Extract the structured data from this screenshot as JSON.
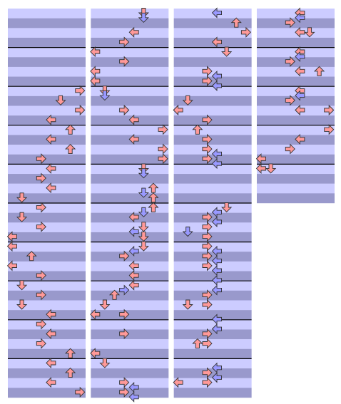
{
  "columns": [
    {
      "measures": 10,
      "notes": [
        [
          16,
          7,
          "#ff9999"
        ],
        [
          18,
          5,
          "#ff9999"
        ],
        [
          20,
          7,
          "#ff9999"
        ],
        [
          22,
          4,
          "#ff9999"
        ],
        [
          24,
          6,
          "#ff9999"
        ],
        [
          26,
          4,
          "#ff9999"
        ],
        [
          28,
          6,
          "#ff9999"
        ],
        [
          30,
          3,
          "#ff9999"
        ],
        [
          32,
          4,
          "#ff9999"
        ],
        [
          34,
          3,
          "#ff9999"
        ],
        [
          36,
          4,
          "#ff9999"
        ],
        [
          38,
          1,
          "#ff9999"
        ],
        [
          40,
          3,
          "#ff9999"
        ],
        [
          42,
          1,
          "#ff9999"
        ],
        [
          44,
          3,
          "#ff9999"
        ],
        [
          46,
          0,
          "#ff9999"
        ],
        [
          48,
          0,
          "#ff9999"
        ],
        [
          50,
          2,
          "#ff9999"
        ],
        [
          52,
          0,
          "#ff9999"
        ],
        [
          54,
          3,
          "#ff9999"
        ],
        [
          56,
          1,
          "#ff9999"
        ],
        [
          58,
          3,
          "#ff9999"
        ],
        [
          60,
          1,
          "#ff9999"
        ],
        [
          62,
          4,
          "#ff9999"
        ],
        [
          64,
          3,
          "#ff9999"
        ],
        [
          66,
          4,
          "#ff9999"
        ],
        [
          68,
          3,
          "#ff9999"
        ],
        [
          70,
          6,
          "#ff9999"
        ],
        [
          72,
          4,
          "#ff9999"
        ],
        [
          74,
          6,
          "#ff9999"
        ],
        [
          76,
          4,
          "#ff9999"
        ],
        [
          78,
          7,
          "#ff9999"
        ]
      ]
    },
    {
      "measures": 10,
      "notes": [
        [
          0,
          5,
          "#ff9999"
        ],
        [
          1,
          5,
          "#9999ff"
        ],
        [
          4,
          4,
          "#ff9999"
        ],
        [
          6,
          3,
          "#ff9999"
        ],
        [
          8,
          0,
          "#ff9999"
        ],
        [
          10,
          3,
          "#ff9999"
        ],
        [
          12,
          0,
          "#ff9999"
        ],
        [
          14,
          0,
          "#ff9999"
        ],
        [
          16,
          1,
          "#ff9999"
        ],
        [
          17,
          1,
          "#9999ff"
        ],
        [
          20,
          3,
          "#ff9999"
        ],
        [
          22,
          4,
          "#ff9999"
        ],
        [
          24,
          7,
          "#ff9999"
        ],
        [
          26,
          4,
          "#ff9999"
        ],
        [
          28,
          7,
          "#ff9999"
        ],
        [
          30,
          7,
          "#ff9999"
        ],
        [
          32,
          5,
          "#ff9999"
        ],
        [
          33,
          5,
          "#9999ff"
        ],
        [
          36,
          6,
          "#ff9999"
        ],
        [
          37,
          5,
          "#9999ff"
        ],
        [
          38,
          6,
          "#ff9999"
        ],
        [
          40,
          6,
          "#ff9999"
        ],
        [
          41,
          5,
          "#9999ff"
        ],
        [
          42,
          4,
          "#ff9999"
        ],
        [
          44,
          5,
          "#ff9999"
        ],
        [
          45,
          4,
          "#9999ff"
        ],
        [
          46,
          5,
          "#ff9999"
        ],
        [
          48,
          5,
          "#ff9999"
        ],
        [
          49,
          4,
          "#9999ff"
        ],
        [
          50,
          3,
          "#ff9999"
        ],
        [
          52,
          4,
          "#ff9999"
        ],
        [
          54,
          4,
          "#ff9999"
        ],
        [
          56,
          4,
          "#ff9999"
        ],
        [
          57,
          3,
          "#9999ff"
        ],
        [
          58,
          2,
          "#ff9999"
        ],
        [
          60,
          1,
          "#ff9999"
        ],
        [
          62,
          0,
          "#ff9999"
        ],
        [
          62,
          3,
          "#ff9999"
        ],
        [
          66,
          3,
          "#ff9999"
        ],
        [
          70,
          0,
          "#ff9999"
        ],
        [
          72,
          1,
          "#ff9999"
        ],
        [
          76,
          3,
          "#ff9999"
        ],
        [
          77,
          4,
          "#9999ff"
        ],
        [
          78,
          3,
          "#ff9999"
        ],
        [
          79,
          4,
          "#9999ff"
        ]
      ]
    },
    {
      "measures": 10,
      "notes": [
        [
          0,
          4,
          "#9999ff"
        ],
        [
          2,
          6,
          "#ff9999"
        ],
        [
          4,
          7,
          "#ff9999"
        ],
        [
          6,
          4,
          "#ff9999"
        ],
        [
          8,
          5,
          "#ff9999"
        ],
        [
          12,
          3,
          "#ff9999"
        ],
        [
          13,
          4,
          "#9999ff"
        ],
        [
          14,
          3,
          "#ff9999"
        ],
        [
          15,
          4,
          "#9999ff"
        ],
        [
          18,
          1,
          "#ff9999"
        ],
        [
          20,
          0,
          "#ff9999"
        ],
        [
          22,
          3,
          "#ff9999"
        ],
        [
          24,
          2,
          "#ff9999"
        ],
        [
          26,
          3,
          "#ff9999"
        ],
        [
          28,
          3,
          "#ff9999"
        ],
        [
          29,
          4,
          "#9999ff"
        ],
        [
          30,
          3,
          "#ff9999"
        ],
        [
          31,
          4,
          "#9999ff"
        ],
        [
          40,
          5,
          "#ff9999"
        ],
        [
          41,
          4,
          "#9999ff"
        ],
        [
          42,
          3,
          "#ff9999"
        ],
        [
          43,
          4,
          "#9999ff"
        ],
        [
          44,
          3,
          "#ff9999"
        ],
        [
          45,
          1,
          "#9999ff"
        ],
        [
          46,
          3,
          "#ff9999"
        ],
        [
          48,
          3,
          "#ff9999"
        ],
        [
          49,
          4,
          "#9999ff"
        ],
        [
          50,
          3,
          "#ff9999"
        ],
        [
          51,
          4,
          "#9999ff"
        ],
        [
          52,
          3,
          "#ff9999"
        ],
        [
          53,
          4,
          "#9999ff"
        ],
        [
          55,
          4,
          "#9999ff"
        ],
        [
          57,
          4,
          "#9999ff"
        ],
        [
          58,
          3,
          "#ff9999"
        ],
        [
          60,
          1,
          "#ff9999"
        ],
        [
          60,
          3,
          "#ff9999"
        ],
        [
          63,
          4,
          "#9999ff"
        ],
        [
          65,
          4,
          "#9999ff"
        ],
        [
          66,
          3,
          "#ff9999"
        ],
        [
          68,
          2,
          "#ff9999"
        ],
        [
          68,
          3,
          "#ff9999"
        ],
        [
          73,
          4,
          "#9999ff"
        ],
        [
          74,
          3,
          "#ff9999"
        ],
        [
          75,
          4,
          "#9999ff"
        ],
        [
          76,
          0,
          "#ff9999"
        ],
        [
          76,
          3,
          "#ff9999"
        ]
      ]
    },
    {
      "measures": 5,
      "notes": [
        [
          0,
          4,
          "#ff9999"
        ],
        [
          1,
          4,
          "#9999ff"
        ],
        [
          2,
          3,
          "#ff9999"
        ],
        [
          4,
          4,
          "#ff9999"
        ],
        [
          4,
          5,
          "#ff9999"
        ],
        [
          8,
          4,
          "#ff9999"
        ],
        [
          9,
          4,
          "#9999ff"
        ],
        [
          10,
          3,
          "#ff9999"
        ],
        [
          12,
          4,
          "#ff9999"
        ],
        [
          12,
          6,
          "#ff9999"
        ],
        [
          16,
          4,
          "#ff9999"
        ],
        [
          17,
          4,
          "#9999ff"
        ],
        [
          18,
          3,
          "#ff9999"
        ],
        [
          20,
          4,
          "#ff9999"
        ],
        [
          20,
          7,
          "#ff9999"
        ],
        [
          24,
          7,
          "#ff9999"
        ],
        [
          26,
          4,
          "#ff9999"
        ],
        [
          28,
          3,
          "#ff9999"
        ],
        [
          30,
          0,
          "#ff9999"
        ],
        [
          32,
          0,
          "#ff9999"
        ],
        [
          32,
          1,
          "#ff9999"
        ]
      ]
    }
  ]
}
